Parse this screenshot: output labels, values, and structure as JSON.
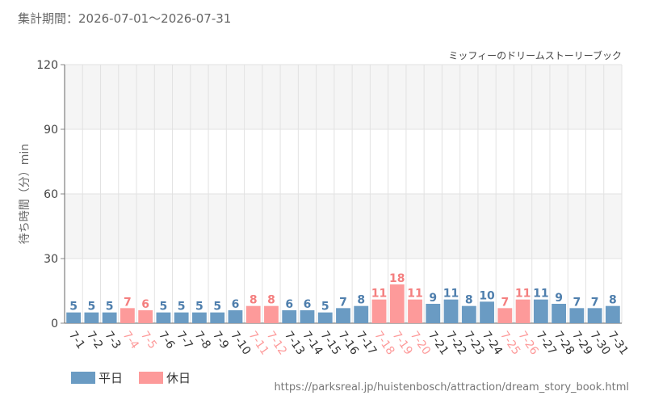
{
  "header": {
    "period": "集計期間：2026-07-01～2026-07-31"
  },
  "footer": {
    "url": "https://parksreal.jp/huistenbosch/attraction/dream_story_book.html"
  },
  "colors": {
    "weekday": "#6a9bc3",
    "holiday": "#fd9a9a",
    "weekday_label": "#4f7fad",
    "holiday_label": "#f47f7f",
    "grid": "#e2e2e2",
    "band": "#f5f5f5"
  },
  "chart_data": {
    "type": "bar",
    "title": "ミッフィーのドリームストーリーブック",
    "xlabel": "",
    "ylabel": "待ち時間（分）min",
    "ylim": [
      0,
      120
    ],
    "yticks": [
      0,
      30,
      60,
      90,
      120
    ],
    "grid": true,
    "legend_position": "bottom-left",
    "categories": [
      "7-1",
      "7-2",
      "7-3",
      "7-4",
      "7-5",
      "7-6",
      "7-7",
      "7-8",
      "7-9",
      "7-10",
      "7-11",
      "7-12",
      "7-13",
      "7-14",
      "7-15",
      "7-16",
      "7-17",
      "7-18",
      "7-19",
      "7-20",
      "7-21",
      "7-22",
      "7-23",
      "7-24",
      "7-25",
      "7-26",
      "7-27",
      "7-28",
      "7-29",
      "7-30",
      "7-31"
    ],
    "values": [
      5,
      5,
      5,
      7,
      6,
      5,
      5,
      5,
      5,
      6,
      8,
      8,
      6,
      6,
      5,
      7,
      8,
      11,
      18,
      11,
      9,
      11,
      8,
      10,
      7,
      11,
      11,
      9,
      7,
      7,
      8
    ],
    "day_type": [
      "weekday",
      "weekday",
      "weekday",
      "holiday",
      "holiday",
      "weekday",
      "weekday",
      "weekday",
      "weekday",
      "weekday",
      "holiday",
      "holiday",
      "weekday",
      "weekday",
      "weekday",
      "weekday",
      "weekday",
      "holiday",
      "holiday",
      "holiday",
      "weekday",
      "weekday",
      "weekday",
      "weekday",
      "holiday",
      "holiday",
      "weekday",
      "weekday",
      "weekday",
      "weekday",
      "weekday"
    ],
    "legend": [
      {
        "key": "weekday",
        "label": "平日"
      },
      {
        "key": "holiday",
        "label": "休日"
      }
    ]
  }
}
